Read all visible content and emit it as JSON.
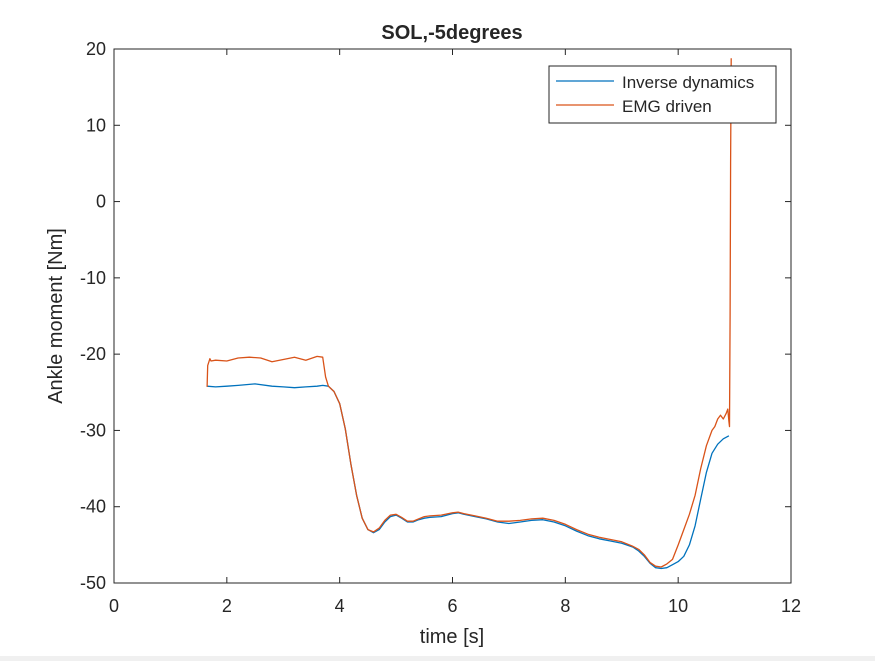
{
  "chart_data": {
    "type": "line",
    "title": "SOL,-5degrees",
    "xlabel": "time  [s]",
    "ylabel": "Ankle moment [Nm]",
    "xlim": [
      0,
      12
    ],
    "ylim": [
      -50,
      20
    ],
    "xticks": [
      0,
      2,
      4,
      6,
      8,
      10,
      12
    ],
    "yticks": [
      -50,
      -40,
      -30,
      -20,
      -10,
      0,
      10,
      20
    ],
    "grid": false,
    "legend_position": "top-right",
    "series": [
      {
        "name": "Inverse dynamics",
        "color": "#0072BD",
        "x": [
          1.65,
          1.8,
          2.0,
          2.2,
          2.5,
          2.8,
          3.0,
          3.2,
          3.4,
          3.6,
          3.7,
          3.8,
          3.9,
          4.0,
          4.1,
          4.2,
          4.3,
          4.4,
          4.5,
          4.6,
          4.7,
          4.8,
          4.9,
          5.0,
          5.1,
          5.2,
          5.3,
          5.4,
          5.5,
          5.6,
          5.8,
          6.0,
          6.1,
          6.2,
          6.4,
          6.6,
          6.8,
          7.0,
          7.2,
          7.4,
          7.6,
          7.8,
          8.0,
          8.2,
          8.4,
          8.6,
          8.8,
          9.0,
          9.2,
          9.3,
          9.4,
          9.5,
          9.6,
          9.7,
          9.8,
          9.9,
          10.0,
          10.1,
          10.2,
          10.3,
          10.4,
          10.5,
          10.6,
          10.7,
          10.8,
          10.9
        ],
        "y": [
          -24.2,
          -24.3,
          -24.2,
          -24.1,
          -23.9,
          -24.2,
          -24.3,
          -24.4,
          -24.3,
          -24.2,
          -24.1,
          -24.2,
          -24.9,
          -26.5,
          -29.8,
          -34.5,
          -38.5,
          -41.5,
          -43.0,
          -43.4,
          -43.0,
          -42.0,
          -41.3,
          -41.1,
          -41.5,
          -42.0,
          -42.0,
          -41.7,
          -41.5,
          -41.4,
          -41.3,
          -40.9,
          -40.8,
          -41.0,
          -41.3,
          -41.6,
          -42.0,
          -42.2,
          -42.0,
          -41.8,
          -41.7,
          -42.0,
          -42.5,
          -43.2,
          -43.8,
          -44.2,
          -44.5,
          -44.8,
          -45.3,
          -45.8,
          -46.5,
          -47.4,
          -48.0,
          -48.1,
          -48.0,
          -47.6,
          -47.2,
          -46.5,
          -45.0,
          -42.5,
          -39.0,
          -35.5,
          -33.0,
          -31.8,
          -31.1,
          -30.7
        ]
      },
      {
        "name": "EMG driven",
        "color": "#D95319",
        "x": [
          1.65,
          1.66,
          1.7,
          1.72,
          1.8,
          2.0,
          2.2,
          2.4,
          2.6,
          2.8,
          3.0,
          3.2,
          3.4,
          3.6,
          3.7,
          3.75,
          3.8,
          3.9,
          4.0,
          4.1,
          4.2,
          4.3,
          4.4,
          4.5,
          4.6,
          4.7,
          4.8,
          4.9,
          5.0,
          5.1,
          5.2,
          5.3,
          5.4,
          5.5,
          5.6,
          5.8,
          6.0,
          6.1,
          6.2,
          6.4,
          6.6,
          6.8,
          7.0,
          7.2,
          7.4,
          7.6,
          7.8,
          8.0,
          8.2,
          8.4,
          8.6,
          8.8,
          9.0,
          9.2,
          9.3,
          9.4,
          9.5,
          9.6,
          9.7,
          9.8,
          9.9,
          10.0,
          10.1,
          10.2,
          10.3,
          10.4,
          10.5,
          10.6,
          10.65,
          10.7,
          10.75,
          10.8,
          10.85,
          10.88,
          10.9,
          10.91,
          10.92,
          10.93,
          10.94
        ],
        "y": [
          -24.3,
          -21.5,
          -20.6,
          -20.9,
          -20.8,
          -20.9,
          -20.5,
          -20.4,
          -20.5,
          -21.0,
          -20.7,
          -20.4,
          -20.8,
          -20.3,
          -20.4,
          -23.0,
          -24.2,
          -24.9,
          -26.5,
          -29.8,
          -34.5,
          -38.5,
          -41.5,
          -43.0,
          -43.3,
          -42.8,
          -41.8,
          -41.1,
          -41.0,
          -41.4,
          -41.9,
          -41.9,
          -41.6,
          -41.3,
          -41.2,
          -41.1,
          -40.8,
          -40.7,
          -40.9,
          -41.2,
          -41.5,
          -41.9,
          -41.9,
          -41.8,
          -41.6,
          -41.5,
          -41.8,
          -42.3,
          -43.0,
          -43.6,
          -44.0,
          -44.3,
          -44.6,
          -45.2,
          -45.6,
          -46.3,
          -47.3,
          -47.8,
          -47.9,
          -47.5,
          -46.9,
          -45.0,
          -43.0,
          -41.0,
          -38.5,
          -35.0,
          -32.0,
          -30.0,
          -29.5,
          -28.5,
          -28.0,
          -28.5,
          -27.8,
          -27.2,
          -28.8,
          -29.5,
          -15.0,
          5.0,
          18.8
        ]
      }
    ]
  }
}
